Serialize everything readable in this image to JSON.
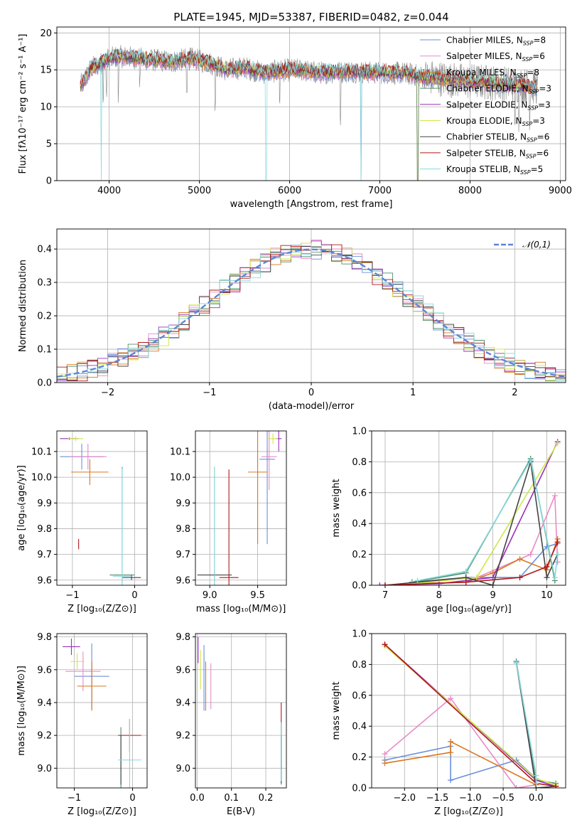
{
  "chart_data": [
    {
      "type": "line",
      "title": "PLATE=1945, MJD=53387, FIBERID=0482, z=0.044",
      "xlabel": "wavelength [Angstrom, rest frame]",
      "ylabel": "Flux [fλ10⁻¹⁷ erg cm⁻² s⁻¹ A⁻¹]",
      "xlim": [
        3420,
        9060
      ],
      "ylim": [
        0,
        20.8
      ],
      "xticks": [
        4000,
        5000,
        6000,
        7000,
        8000,
        9000
      ],
      "yticks": [
        0,
        5,
        10,
        15,
        20
      ],
      "legend_position": "top-right",
      "series": [
        {
          "name": "Chabrier MILES, N",
          "sub": "SSP",
          "eq": "=8",
          "color": "#6a8fdb"
        },
        {
          "name": "Salpeter MILES, N",
          "sub": "SSP",
          "eq": "=6",
          "color": "#e88ac8"
        },
        {
          "name": "Kroupa MILES, N",
          "sub": "SSP",
          "eq": "=8",
          "color": "#d9771e"
        },
        {
          "name": "Chabrier ELODIE, N",
          "sub": "SSP",
          "eq": "=3",
          "color": "#4f8f6b"
        },
        {
          "name": "Salpeter ELODIE, N",
          "sub": "SSP",
          "eq": "=3",
          "color": "#9b30b8"
        },
        {
          "name": "Kroupa ELODIE, N",
          "sub": "SSP",
          "eq": "=3",
          "color": "#cde84a"
        },
        {
          "name": "Chabrier STELIB, N",
          "sub": "SSP",
          "eq": "=6",
          "color": "#444444"
        },
        {
          "name": "Salpeter STELIB, N",
          "sub": "SSP",
          "eq": "=6",
          "color": "#b01818"
        },
        {
          "name": "Kroupa STELIB, N",
          "sub": "SSP",
          "eq": "=5",
          "color": "#86d8dc"
        }
      ],
      "data_color": "#888888",
      "continuum": {
        "x": [
          3700,
          3800,
          3900,
          4000,
          4100,
          4300,
          4500,
          4700,
          4900,
          5100,
          5300,
          5500,
          5700,
          5900,
          6100,
          6300,
          6500,
          6700,
          6900,
          7100,
          7300,
          7500,
          7700,
          7900,
          8100,
          8300,
          8500,
          8700
        ],
        "y": [
          13.0,
          15.2,
          15.8,
          16.5,
          16.8,
          16.6,
          16.3,
          16.1,
          16.5,
          16.0,
          15.0,
          15.3,
          14.6,
          14.9,
          15.0,
          14.6,
          14.7,
          14.8,
          14.6,
          14.6,
          14.5,
          14.0,
          13.8,
          13.5,
          13.4,
          13.2,
          13.0,
          12.7
        ]
      }
    },
    {
      "type": "area",
      "xlabel": "(data-model)/error",
      "ylabel": "Normed distribution",
      "xlim": [
        -2.5,
        2.5
      ],
      "ylim": [
        0,
        0.46
      ],
      "xticks": [
        -2,
        -1,
        0,
        1,
        2
      ],
      "yticks": [
        0.0,
        0.1,
        0.2,
        0.3,
        0.4
      ],
      "legend_position": "top-right",
      "legend": "𝒩(0,1)",
      "gaussian_color": "#5b86d6",
      "bin_width": 0.1,
      "colors": [
        "#6a8fdb",
        "#e88ac8",
        "#d9771e",
        "#4f8f6b",
        "#9b30b8",
        "#cde84a",
        "#444444",
        "#b01818",
        "#86d8dc"
      ]
    },
    {
      "type": "scatter",
      "xlabel": "Z [log₁₀(Z/Z⊙)]",
      "ylabel": "age  [log₁₀(age/yr)]",
      "xlim": [
        -1.25,
        0.2
      ],
      "ylim": [
        9.58,
        10.18
      ],
      "xticks": [
        -1,
        0
      ],
      "yticks": [
        9.6,
        9.7,
        9.8,
        9.9,
        10.0,
        10.1
      ],
      "points": [
        {
          "x": -0.85,
          "y": 10.08,
          "xe": 0.35,
          "ye": 0.05,
          "c": 0
        },
        {
          "x": -0.75,
          "y": 10.08,
          "xe": 0.3,
          "ye": 0.05,
          "c": 1
        },
        {
          "x": -0.72,
          "y": 10.02,
          "xe": 0.3,
          "ye": 0.05,
          "c": 2
        },
        {
          "x": -0.2,
          "y": 9.62,
          "xe": 0.2,
          "ye": 0.42,
          "c": 3
        },
        {
          "x": -1.05,
          "y": 10.15,
          "xe": 0.15,
          "ye": 0.005,
          "c": 4
        },
        {
          "x": -0.95,
          "y": 10.15,
          "xe": 0.12,
          "ye": 0.01,
          "c": 5
        },
        {
          "x": -0.05,
          "y": 9.61,
          "xe": 0.15,
          "ye": 0.01,
          "c": 6
        },
        {
          "x": -0.9,
          "y": 9.74,
          "xe": 0.0,
          "ye": 0.02,
          "c": 7
        },
        {
          "x": -0.2,
          "y": 9.615,
          "xe": 0.15,
          "ye": 0.42,
          "c": 8
        }
      ]
    },
    {
      "type": "scatter",
      "xlabel": "mass [log₁₀(M/M⊙)]",
      "xlim": [
        8.85,
        9.8
      ],
      "ylim": [
        9.58,
        10.18
      ],
      "xticks": [
        9.0,
        9.5
      ],
      "yticks": [
        9.6,
        9.7,
        9.8,
        9.9,
        10.0,
        10.1
      ],
      "points": [
        {
          "x": 9.6,
          "y": 10.07,
          "xe": 0.08,
          "ye": 0.33,
          "c": 0
        },
        {
          "x": 9.62,
          "y": 10.08,
          "xe": 0.08,
          "ye": 0.13,
          "c": 1
        },
        {
          "x": 9.5,
          "y": 10.02,
          "xe": 0.1,
          "ye": 0.28,
          "c": 2
        },
        {
          "x": 9.05,
          "y": 9.62,
          "xe": 0.0,
          "ye": 0.42,
          "c": 3
        },
        {
          "x": 9.72,
          "y": 10.15,
          "xe": 0.03,
          "ye": 0.05,
          "c": 4
        },
        {
          "x": 9.66,
          "y": 10.15,
          "xe": 0.05,
          "ye": 0.02,
          "c": 5
        },
        {
          "x": 9.05,
          "y": 9.62,
          "xe": 0.18,
          "ye": 0.01,
          "c": 6
        },
        {
          "x": 9.2,
          "y": 9.61,
          "xe": 0.1,
          "ye": 0.42,
          "c": 7
        },
        {
          "x": 9.05,
          "y": 9.62,
          "xe": 0.0,
          "ye": 0.42,
          "c": 8
        }
      ]
    },
    {
      "type": "line",
      "xlabel": "age  [log₁₀(age/yr)]",
      "ylabel": "mass weight",
      "xlim": [
        6.75,
        10.35
      ],
      "ylim": [
        0,
        1.0
      ],
      "xticks": [
        7,
        8,
        9,
        10
      ],
      "yticks": [
        0.0,
        0.2,
        0.4,
        0.6,
        0.8,
        1.0
      ],
      "series": [
        {
          "c": 0,
          "x": [
            7.5,
            8.5,
            9.5,
            10.0,
            10.2
          ],
          "y": [
            0.02,
            0.05,
            0.05,
            0.25,
            0.27
          ]
        },
        {
          "c": 1,
          "x": [
            8.5,
            9.7,
            10.15,
            10.2
          ],
          "y": [
            0.02,
            0.2,
            0.58,
            0.15
          ]
        },
        {
          "c": 2,
          "x": [
            7.5,
            8.5,
            9.0,
            9.5,
            10.0,
            10.2
          ],
          "y": [
            0.01,
            0.02,
            0.08,
            0.17,
            0.1,
            0.3
          ]
        },
        {
          "c": 3,
          "x": [
            7.5,
            8.5,
            9.7,
            10.15
          ],
          "y": [
            0.02,
            0.08,
            0.82,
            0.03
          ]
        },
        {
          "c": 4,
          "x": [
            6.9,
            8.0,
            9.0,
            10.2
          ],
          "y": [
            0.0,
            0.01,
            0.05,
            0.93
          ]
        },
        {
          "c": 5,
          "x": [
            7.5,
            8.7,
            10.2
          ],
          "y": [
            0.01,
            0.05,
            0.92
          ]
        },
        {
          "c": 6,
          "x": [
            7.0,
            8.5,
            9.0,
            9.7,
            10.0,
            10.2
          ],
          "y": [
            0.0,
            0.05,
            0.0,
            0.8,
            0.05,
            0.2
          ]
        },
        {
          "c": 7,
          "x": [
            7.0,
            8.5,
            9.5,
            10.0,
            10.2
          ],
          "y": [
            0.0,
            0.02,
            0.05,
            0.12,
            0.28
          ]
        },
        {
          "c": 8,
          "x": [
            7.6,
            8.5,
            9.7,
            10.15,
            10.2
          ],
          "y": [
            0.03,
            0.09,
            0.81,
            0.05,
            0.2
          ]
        }
      ]
    },
    {
      "type": "scatter",
      "xlabel": "Z [log₁₀(Z/Z⊙)]",
      "ylabel": "mass [log₁₀(M/M⊙)]",
      "xlim": [
        -1.3,
        0.25
      ],
      "ylim": [
        8.88,
        9.82
      ],
      "xticks": [
        -1,
        0
      ],
      "yticks": [
        9.0,
        9.2,
        9.4,
        9.6,
        9.8
      ],
      "points": [
        {
          "x": -0.7,
          "y": 9.56,
          "xe": 0.3,
          "ye": 0.2,
          "c": 0
        },
        {
          "x": -0.85,
          "y": 9.59,
          "xe": 0.3,
          "ye": 0.12,
          "c": 1
        },
        {
          "x": -0.7,
          "y": 9.5,
          "xe": 0.25,
          "ye": 0.15,
          "c": 2
        },
        {
          "x": -0.2,
          "y": 9.05,
          "xe": 0.0,
          "ye": 0.2,
          "c": 3
        },
        {
          "x": -1.05,
          "y": 9.74,
          "xe": 0.15,
          "ye": 0.05,
          "c": 4
        },
        {
          "x": -0.95,
          "y": 9.65,
          "xe": 0.12,
          "ye": 0.05,
          "c": 5
        },
        {
          "x": -0.2,
          "y": 9.05,
          "xe": 0.0,
          "ye": 0.15,
          "c": 6
        },
        {
          "x": -0.05,
          "y": 9.2,
          "xe": 0.2,
          "ye": 0.1,
          "c": 7
        },
        {
          "x": -0.05,
          "y": 9.05,
          "xe": 0.2,
          "ye": 0.25,
          "c": 8
        }
      ]
    },
    {
      "type": "scatter",
      "xlabel": "E(B-V)",
      "xlim": [
        -0.005,
        0.26
      ],
      "ylim": [
        8.88,
        9.82
      ],
      "xticks": [
        0.0,
        0.1,
        0.2
      ],
      "yticks": [
        9.0,
        9.2,
        9.4,
        9.6,
        9.8
      ],
      "points": [
        {
          "x": 0.02,
          "y": 9.55,
          "xe": 0.0,
          "ye": 0.2,
          "c": 0
        },
        {
          "x": 0.04,
          "y": 9.5,
          "xe": 0.0,
          "ye": 0.14,
          "c": 1
        },
        {
          "x": 0.025,
          "y": 9.5,
          "xe": 0.0,
          "ye": 0.15,
          "c": 2
        },
        {
          "x": 0.245,
          "y": 9.05,
          "xe": 0.0,
          "ye": 0.15,
          "c": 3
        },
        {
          "x": 0.003,
          "y": 9.72,
          "xe": 0.0,
          "ye": 0.08,
          "c": 4
        },
        {
          "x": 0.01,
          "y": 9.6,
          "xe": 0.0,
          "ye": 0.12,
          "c": 5
        },
        {
          "x": 0.245,
          "y": 9.05,
          "xe": 0.0,
          "ye": 0.14,
          "c": 6
        },
        {
          "x": 0.245,
          "y": 9.2,
          "xe": 0.0,
          "ye": 0.2,
          "c": 7
        },
        {
          "x": 0.245,
          "y": 9.1,
          "xe": 0.0,
          "ye": 0.18,
          "c": 8
        }
      ]
    },
    {
      "type": "line",
      "xlabel": "Z [log₁₀(Z/Z⊙)]",
      "ylabel": "mass weight",
      "xlim": [
        -2.5,
        0.45
      ],
      "ylim": [
        0,
        1.0
      ],
      "xticks": [
        -2.0,
        -1.5,
        -1.0,
        -0.5,
        0.0
      ],
      "yticks": [
        0.0,
        0.2,
        0.4,
        0.6,
        0.8,
        1.0
      ],
      "series": [
        {
          "c": 0,
          "x": [
            -2.3,
            -1.3,
            -1.3,
            -0.3,
            0.0
          ],
          "y": [
            0.18,
            0.27,
            0.05,
            0.18,
            0.06
          ]
        },
        {
          "c": 1,
          "x": [
            -2.3,
            -1.3,
            -0.3,
            0.0,
            0.0
          ],
          "y": [
            0.22,
            0.58,
            0.0,
            0.02,
            0.05
          ]
        },
        {
          "c": 2,
          "x": [
            -2.3,
            -1.3,
            -1.3,
            0.0
          ],
          "y": [
            0.16,
            0.23,
            0.3,
            0.02
          ]
        },
        {
          "c": 3,
          "x": [
            -0.3,
            0.0,
            0.3
          ],
          "y": [
            0.82,
            0.05,
            0.03
          ]
        },
        {
          "c": 4,
          "x": [
            -2.3,
            0.0,
            0.3
          ],
          "y": [
            0.93,
            0.05,
            0.01
          ]
        },
        {
          "c": 5,
          "x": [
            -2.3,
            0.0,
            0.3
          ],
          "y": [
            0.92,
            0.06,
            0.02
          ]
        },
        {
          "c": 6,
          "x": [
            -0.3,
            0.0,
            0.3
          ],
          "y": [
            0.81,
            0.0,
            0.01
          ]
        },
        {
          "c": 7,
          "x": [
            -2.3,
            0.0,
            0.3
          ],
          "y": [
            0.93,
            0.03,
            0.01
          ]
        },
        {
          "c": 8,
          "x": [
            -0.3,
            0.0,
            0.0
          ],
          "y": [
            0.81,
            0.08,
            0.03
          ]
        }
      ]
    }
  ]
}
